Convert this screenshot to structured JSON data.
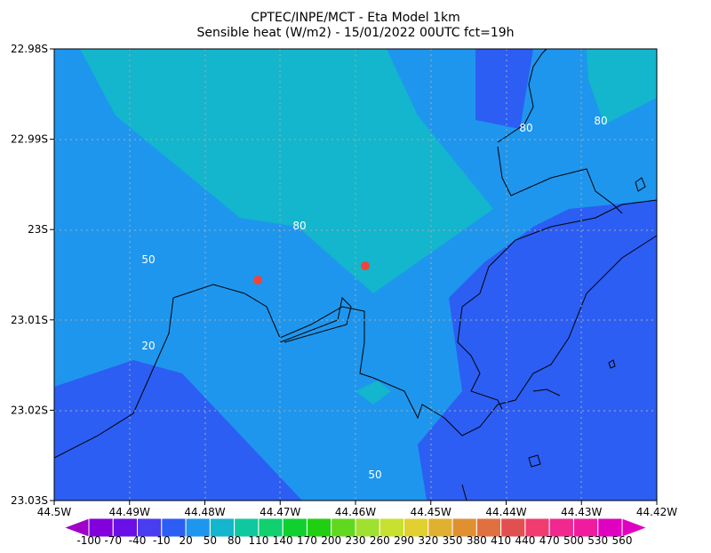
{
  "header": {
    "title_line1": "CPTEC/INPE/MCT -  Eta Model 1km",
    "title_line2": "Sensible heat (W/m2) - 15/01/2022 00UTC fct=19h"
  },
  "axes": {
    "lon_labels": [
      "44.5W",
      "44.49W",
      "44.48W",
      "44.47W",
      "44.46W",
      "44.45W",
      "44.44W",
      "44.43W",
      "44.42W"
    ],
    "lat_labels": [
      "22.98S",
      "22.99S",
      "23S",
      "23.01S",
      "23.02S",
      "23.03S"
    ]
  },
  "contour_labels": [
    "80",
    "80",
    "80",
    "50",
    "20",
    "50"
  ],
  "colorbar": {
    "labels": [
      "-100",
      "-70",
      "-40",
      "-10",
      "20",
      "50",
      "80",
      "110",
      "140",
      "170",
      "200",
      "230",
      "260",
      "290",
      "320",
      "350",
      "380",
      "410",
      "440",
      "470",
      "500",
      "530",
      "560"
    ]
  }
}
